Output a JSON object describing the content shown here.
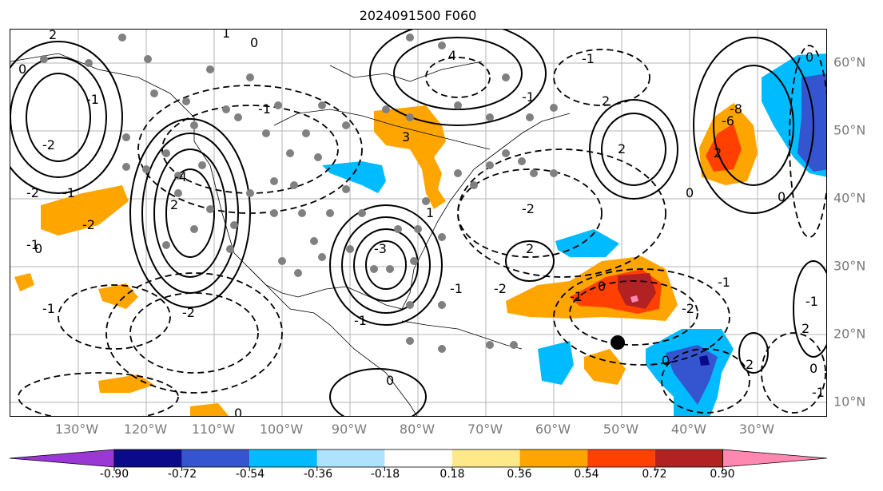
{
  "title": "2024091500 F060",
  "lon_labels": [
    "130°W",
    "120°W",
    "110°W",
    "100°W",
    "90°W",
    "80°W",
    "70°W",
    "60°W",
    "50°W",
    "40°W",
    "30°W"
  ],
  "lat_labels": [
    "60°N",
    "50°N",
    "40°N",
    "30°N",
    "20°N",
    "10°N"
  ],
  "contour_labels": [
    "2",
    "1",
    "0",
    "0",
    "4",
    "-1",
    "-1",
    "-2",
    "-1",
    "2",
    "-1",
    "2",
    "-4",
    "2",
    "3",
    "-3",
    "-6",
    "-8",
    "2",
    "0",
    "-2",
    "-1",
    "0",
    "-1",
    "-2",
    "-2",
    "2",
    "0",
    "-1",
    "-2",
    "0",
    "-1",
    "2",
    "-1",
    "2",
    "0",
    "-1",
    "1",
    "-2",
    "-1",
    "-1",
    "0",
    "0",
    "-1",
    "-2",
    "0",
    "0"
  ],
  "colorbar": {
    "ticks": [
      "-0.90",
      "-0.72",
      "-0.54",
      "-0.36",
      "-0.18",
      "0.18",
      "0.36",
      "0.54",
      "0.72",
      "0.90"
    ],
    "colors": [
      "#9a38d6",
      "#0a0a8a",
      "#3455cf",
      "#00bbff",
      "#aee2ff",
      "#ffffff",
      "#fde88a",
      "#ffa500",
      "#ff4000",
      "#b22222",
      "#ff88b0"
    ]
  },
  "palette": {
    "orange": "#ffa500",
    "red": "#ff4000",
    "darkred": "#b22222",
    "pink": "#ff88b0",
    "cyan": "#00bbff",
    "blue": "#3455cf",
    "navy": "#0a0a8a",
    "purple": "#9a38d6",
    "light": "#aee2ff"
  }
}
